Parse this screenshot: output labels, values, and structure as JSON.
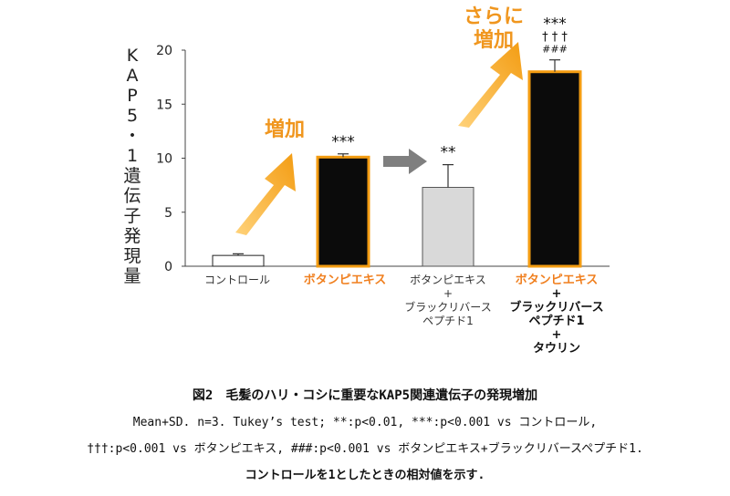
{
  "chart_data": {
    "type": "bar",
    "ylabel": "KAP5・1遺伝子発現量",
    "ylim": [
      0,
      20
    ],
    "yticks": [
      0,
      5,
      10,
      15,
      20
    ],
    "grid": false,
    "categories": [
      [
        "コントロール"
      ],
      [
        "ボタンピエキス"
      ],
      [
        "ボタンピエキス",
        "+",
        "ブラックリバース",
        "ペプチド1"
      ],
      [
        "ボタンピエキス",
        "+",
        "ブラックリバース",
        "ペプチド1",
        "+",
        "タウリン"
      ]
    ],
    "values": [
      1.0,
      10.1,
      7.3,
      18.0
    ],
    "errors": [
      0.15,
      0.3,
      2.1,
      1.1
    ],
    "bar_colors": [
      "#ffffff",
      "#0b0b0b",
      "#d9d9d9",
      "#0b0b0b"
    ],
    "bar_edges": [
      "#222222",
      "#f39c12",
      "#555555",
      "#f39c12"
    ],
    "significance": [
      "",
      "***",
      "**",
      "***"
    ],
    "significance_2": [
      "",
      "",
      "",
      "† † †"
    ],
    "significance_3": [
      "",
      "",
      "",
      "###"
    ],
    "callouts": [
      "増加",
      "さらに\n増加"
    ],
    "colors": {
      "accent": "#f39c12",
      "label_accent": "#f07f1e",
      "arrow_gray": "#7f7f7f"
    }
  },
  "caption": {
    "title": "図2　毛髪のハリ・コシに重要なKAP5関連遺伝子の発現増加",
    "line1": "Mean+SD. n=3. Tukey’s test; **:p<0.01, ***:p<0.001 vs コントロール,",
    "line2": "†††:p<0.001 vs ボタンピエキス, ###:p<0.001 vs ボタンピエキス+ブラックリバースペプチド1.",
    "line3": "コントロールを1としたときの相対値を示す."
  }
}
